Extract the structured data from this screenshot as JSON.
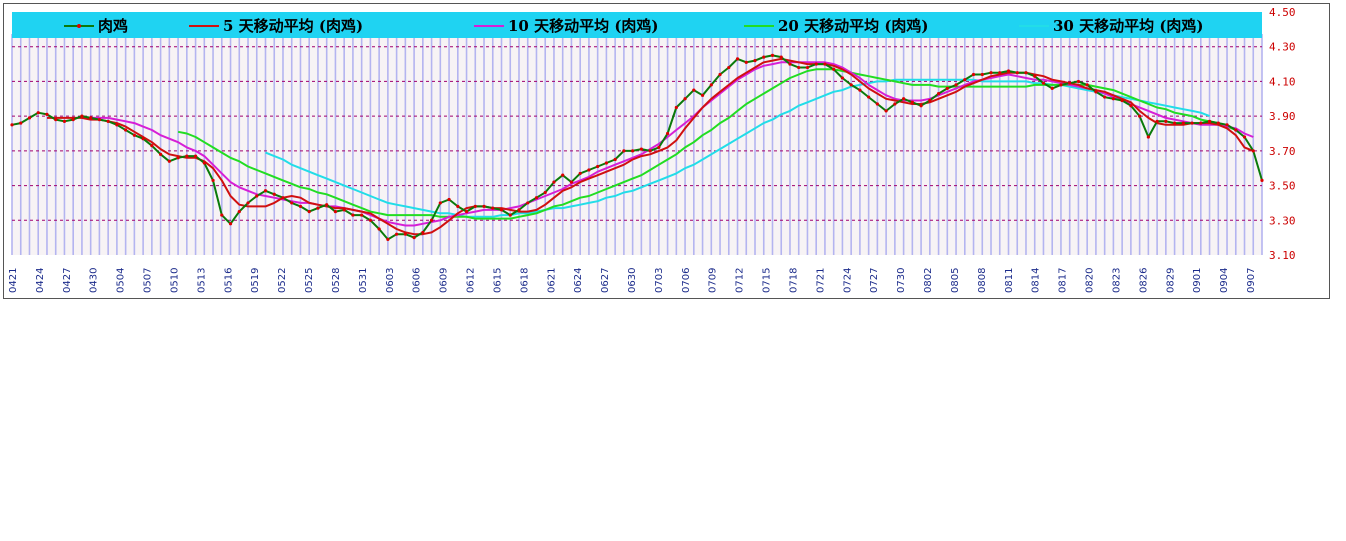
{
  "chart_data": {
    "type": "line",
    "title": "",
    "xlabel": "",
    "ylabel": "",
    "ylim": [
      3.1,
      4.5
    ],
    "yticks": [
      "3.10",
      "3.30",
      "3.50",
      "3.70",
      "3.90",
      "4.10",
      "4.30",
      "4.50"
    ],
    "xtick_labels": [
      "0421",
      "0424",
      "0427",
      "0430",
      "0504",
      "0507",
      "0510",
      "0513",
      "0516",
      "0519",
      "0522",
      "0525",
      "0528",
      "0531",
      "0603",
      "0606",
      "0609",
      "0612",
      "0615",
      "0618",
      "0621",
      "0624",
      "0627",
      "0630",
      "0703",
      "0706",
      "0709",
      "0712",
      "0715",
      "0718",
      "0721",
      "0724",
      "0727",
      "0730",
      "0802",
      "0805",
      "0808",
      "0811",
      "0814",
      "0817",
      "0820",
      "0823",
      "0826",
      "0829",
      "0901",
      "0904",
      "0907"
    ],
    "legend_position": "top",
    "grid": true,
    "background_color": "#f7f3f5",
    "legend_band_color": "#1fd3f2",
    "tick_label_color": "#cc0000",
    "vertical_bar_color": "#b4b4f0",
    "horizontal_grid_color": "#a0006e",
    "series": [
      {
        "name": "肉鸡",
        "color": "#0a7a0a",
        "marker_color": "#dd0000",
        "values": [
          3.85,
          3.86,
          3.89,
          3.92,
          3.91,
          3.88,
          3.87,
          3.88,
          3.9,
          3.89,
          3.88,
          3.87,
          3.85,
          3.82,
          3.79,
          3.77,
          3.73,
          3.68,
          3.64,
          3.66,
          3.67,
          3.67,
          3.63,
          3.53,
          3.33,
          3.28,
          3.35,
          3.4,
          3.44,
          3.47,
          3.45,
          3.43,
          3.4,
          3.38,
          3.35,
          3.37,
          3.39,
          3.35,
          3.36,
          3.33,
          3.33,
          3.3,
          3.25,
          3.19,
          3.22,
          3.22,
          3.2,
          3.23,
          3.3,
          3.4,
          3.42,
          3.38,
          3.35,
          3.38,
          3.38,
          3.37,
          3.36,
          3.33,
          3.36,
          3.4,
          3.43,
          3.46,
          3.52,
          3.56,
          3.52,
          3.57,
          3.59,
          3.61,
          3.63,
          3.65,
          3.7,
          3.7,
          3.71,
          3.7,
          3.72,
          3.8,
          3.95,
          4.0,
          4.05,
          4.02,
          4.08,
          4.14,
          4.18,
          4.23,
          4.21,
          4.22,
          4.24,
          4.25,
          4.24,
          4.2,
          4.18,
          4.18,
          4.2,
          4.2,
          4.17,
          4.12,
          4.08,
          4.05,
          4.01,
          3.97,
          3.93,
          3.97,
          4.0,
          3.98,
          3.96,
          3.99,
          4.03,
          4.06,
          4.08,
          4.11,
          4.14,
          4.14,
          4.15,
          4.15,
          4.16,
          4.15,
          4.15,
          4.13,
          4.09,
          4.06,
          4.08,
          4.09,
          4.1,
          4.08,
          4.04,
          4.01,
          4.0,
          3.99,
          3.96,
          3.9,
          3.78,
          3.87,
          3.87,
          3.86,
          3.86,
          3.86,
          3.86,
          3.87,
          3.86,
          3.85,
          3.82,
          3.78,
          3.7,
          3.53
        ]
      },
      {
        "name": "5 天移动平均 (肉鸡)",
        "color": "#d01010",
        "values": [
          null,
          null,
          null,
          null,
          3.89,
          3.89,
          3.89,
          3.89,
          3.89,
          3.88,
          3.88,
          3.87,
          3.86,
          3.84,
          3.81,
          3.78,
          3.75,
          3.71,
          3.68,
          3.67,
          3.66,
          3.66,
          3.64,
          3.6,
          3.53,
          3.44,
          3.39,
          3.38,
          3.38,
          3.38,
          3.4,
          3.43,
          3.44,
          3.43,
          3.4,
          3.39,
          3.38,
          3.37,
          3.37,
          3.36,
          3.35,
          3.34,
          3.31,
          3.28,
          3.25,
          3.23,
          3.22,
          3.22,
          3.23,
          3.26,
          3.3,
          3.34,
          3.37,
          3.38,
          3.38,
          3.37,
          3.37,
          3.36,
          3.35,
          3.35,
          3.36,
          3.39,
          3.43,
          3.47,
          3.49,
          3.52,
          3.54,
          3.56,
          3.58,
          3.6,
          3.62,
          3.65,
          3.67,
          3.68,
          3.7,
          3.72,
          3.76,
          3.83,
          3.89,
          3.95,
          4.0,
          4.04,
          4.08,
          4.12,
          4.15,
          4.18,
          4.21,
          4.22,
          4.23,
          4.22,
          4.21,
          4.2,
          4.2,
          4.2,
          4.19,
          4.17,
          4.14,
          4.1,
          4.06,
          4.03,
          4.0,
          3.99,
          3.98,
          3.97,
          3.97,
          3.98,
          4.0,
          4.02,
          4.04,
          4.07,
          4.09,
          4.11,
          4.13,
          4.14,
          4.15,
          4.15,
          4.15,
          4.14,
          4.13,
          4.11,
          4.1,
          4.09,
          4.08,
          4.06,
          4.05,
          4.04,
          4.02,
          4.0,
          3.98,
          3.93,
          3.89,
          3.86,
          3.85,
          3.85,
          3.85,
          3.86,
          3.86,
          3.86,
          3.85,
          3.83,
          3.79,
          3.72,
          3.7
        ]
      },
      {
        "name": "10 天移动平均 (肉鸡)",
        "color": "#d61fd6",
        "values": [
          null,
          null,
          null,
          null,
          null,
          null,
          null,
          null,
          null,
          3.89,
          3.89,
          3.89,
          3.88,
          3.87,
          3.86,
          3.84,
          3.82,
          3.79,
          3.77,
          3.75,
          3.72,
          3.7,
          3.67,
          3.62,
          3.57,
          3.52,
          3.49,
          3.47,
          3.45,
          3.44,
          3.43,
          3.42,
          3.41,
          3.4,
          3.4,
          3.39,
          3.38,
          3.38,
          3.37,
          3.36,
          3.35,
          3.33,
          3.31,
          3.29,
          3.28,
          3.27,
          3.27,
          3.28,
          3.29,
          3.3,
          3.32,
          3.33,
          3.34,
          3.35,
          3.36,
          3.36,
          3.36,
          3.37,
          3.38,
          3.4,
          3.42,
          3.44,
          3.46,
          3.48,
          3.51,
          3.53,
          3.55,
          3.58,
          3.6,
          3.62,
          3.64,
          3.66,
          3.68,
          3.71,
          3.74,
          3.78,
          3.82,
          3.86,
          3.9,
          3.95,
          3.99,
          4.03,
          4.07,
          4.11,
          4.14,
          4.17,
          4.19,
          4.2,
          4.21,
          4.21,
          4.21,
          4.21,
          4.21,
          4.21,
          4.2,
          4.18,
          4.15,
          4.12,
          4.08,
          4.05,
          4.02,
          4.0,
          3.99,
          3.99,
          3.99,
          4.0,
          4.02,
          4.04,
          4.06,
          4.08,
          4.1,
          4.11,
          4.12,
          4.13,
          4.14,
          4.13,
          4.12,
          4.11,
          4.11,
          4.1,
          4.09,
          4.08,
          4.07,
          4.06,
          4.05,
          4.03,
          4.01,
          3.99,
          3.97,
          3.95,
          3.93,
          3.91,
          3.89,
          3.88,
          3.87,
          3.86,
          3.85,
          3.85,
          3.85,
          3.84,
          3.83,
          3.8,
          3.78
        ]
      },
      {
        "name": "20 天移动平均 (肉鸡)",
        "color": "#22dd22",
        "values": [
          null,
          null,
          null,
          null,
          null,
          null,
          null,
          null,
          null,
          null,
          null,
          null,
          null,
          null,
          null,
          null,
          null,
          null,
          null,
          3.81,
          3.8,
          3.78,
          3.75,
          3.72,
          3.69,
          3.66,
          3.64,
          3.61,
          3.59,
          3.57,
          3.55,
          3.53,
          3.51,
          3.49,
          3.48,
          3.46,
          3.45,
          3.43,
          3.41,
          3.39,
          3.37,
          3.35,
          3.34,
          3.33,
          3.33,
          3.33,
          3.33,
          3.33,
          3.33,
          3.32,
          3.32,
          3.32,
          3.32,
          3.31,
          3.31,
          3.31,
          3.31,
          3.31,
          3.32,
          3.33,
          3.34,
          3.36,
          3.38,
          3.39,
          3.41,
          3.43,
          3.44,
          3.46,
          3.48,
          3.5,
          3.52,
          3.54,
          3.56,
          3.59,
          3.62,
          3.65,
          3.68,
          3.72,
          3.75,
          3.79,
          3.82,
          3.86,
          3.89,
          3.93,
          3.97,
          4.0,
          4.03,
          4.06,
          4.09,
          4.12,
          4.14,
          4.16,
          4.17,
          4.17,
          4.17,
          4.16,
          4.15,
          4.14,
          4.13,
          4.12,
          4.11,
          4.1,
          4.09,
          4.08,
          4.08,
          4.08,
          4.07,
          4.07,
          4.07,
          4.07,
          4.07,
          4.07,
          4.07,
          4.07,
          4.07,
          4.07,
          4.07,
          4.08,
          4.08,
          4.08,
          4.08,
          4.08,
          4.08,
          4.08,
          4.07,
          4.06,
          4.05,
          4.03,
          4.01,
          3.99,
          3.97,
          3.95,
          3.94,
          3.92,
          3.91,
          3.9,
          3.88,
          3.87,
          3.86,
          3.84,
          3.82
        ]
      },
      {
        "name": "30 天移动平均 (肉鸡)",
        "color": "#22dde8",
        "values": [
          null,
          null,
          null,
          null,
          null,
          null,
          null,
          null,
          null,
          null,
          null,
          null,
          null,
          null,
          null,
          null,
          null,
          null,
          null,
          null,
          null,
          null,
          null,
          null,
          null,
          null,
          null,
          null,
          null,
          3.69,
          3.67,
          3.65,
          3.62,
          3.6,
          3.58,
          3.56,
          3.54,
          3.52,
          3.5,
          3.48,
          3.46,
          3.44,
          3.42,
          3.4,
          3.39,
          3.38,
          3.37,
          3.36,
          3.35,
          3.34,
          3.34,
          3.33,
          3.32,
          3.32,
          3.32,
          3.32,
          3.33,
          3.33,
          3.34,
          3.34,
          3.35,
          3.36,
          3.37,
          3.37,
          3.38,
          3.39,
          3.4,
          3.41,
          3.43,
          3.44,
          3.46,
          3.47,
          3.49,
          3.51,
          3.53,
          3.55,
          3.57,
          3.6,
          3.62,
          3.65,
          3.68,
          3.71,
          3.74,
          3.77,
          3.8,
          3.83,
          3.86,
          3.88,
          3.91,
          3.93,
          3.96,
          3.98,
          4.0,
          4.02,
          4.04,
          4.05,
          4.07,
          4.08,
          4.09,
          4.1,
          4.1,
          4.11,
          4.11,
          4.11,
          4.11,
          4.11,
          4.11,
          4.11,
          4.11,
          4.11,
          4.11,
          4.1,
          4.1,
          4.1,
          4.1,
          4.1,
          4.1,
          4.09,
          4.09,
          4.08,
          4.08,
          4.07,
          4.06,
          4.05,
          4.04,
          4.03,
          4.02,
          4.01,
          4.0,
          3.99,
          3.98,
          3.97,
          3.96,
          3.95,
          3.94,
          3.93,
          3.92,
          3.9
        ]
      }
    ]
  }
}
